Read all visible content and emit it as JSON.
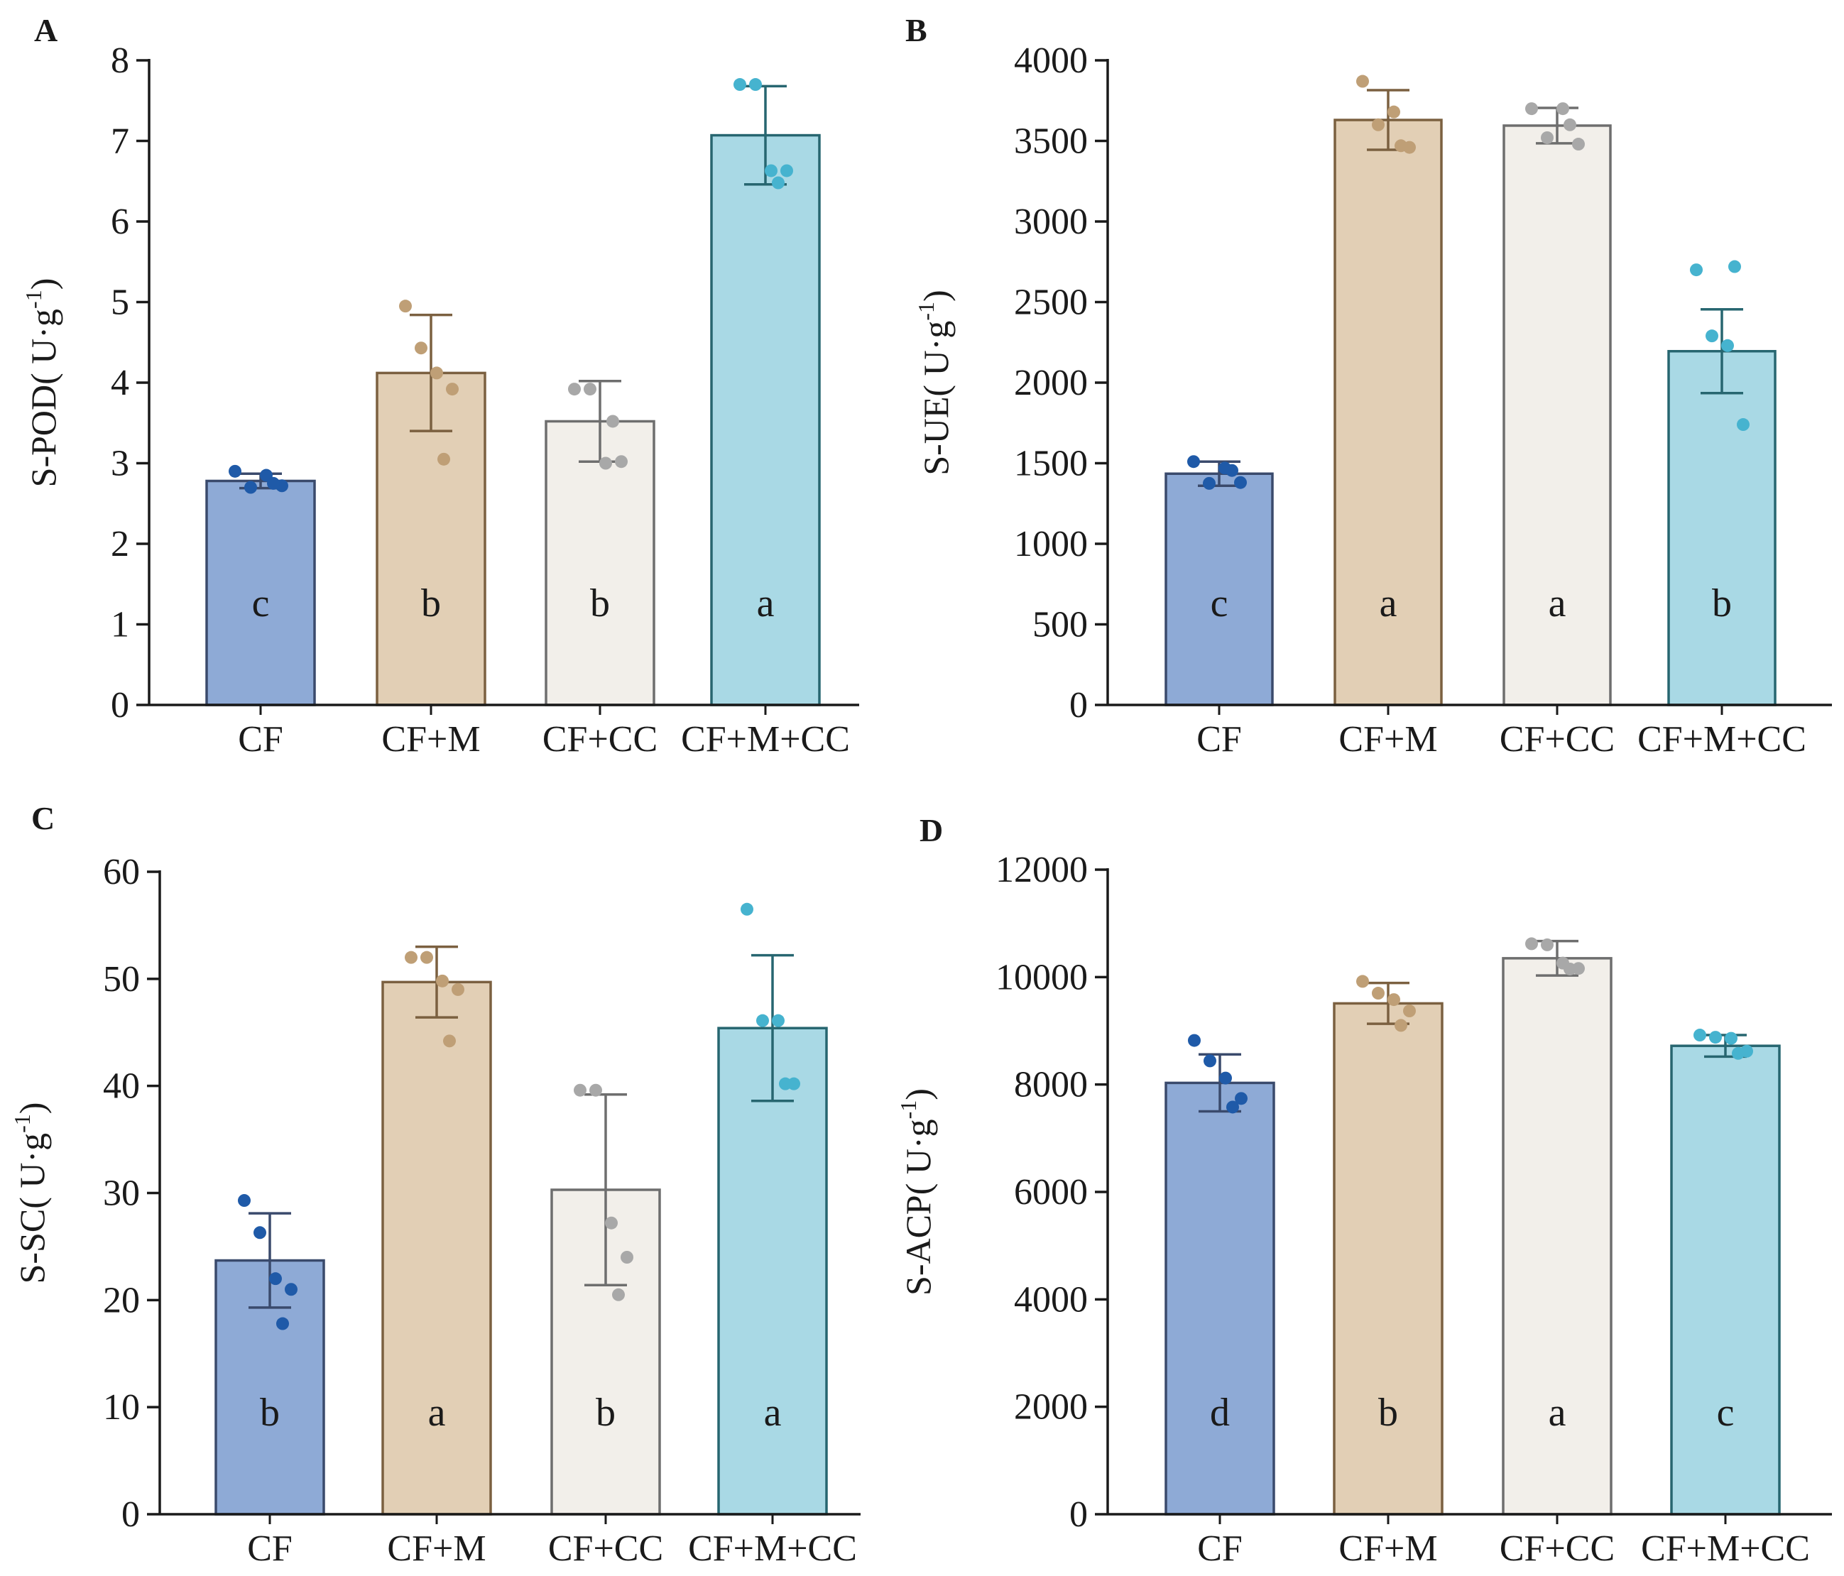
{
  "figure": {
    "panels": [
      "A",
      "B",
      "C",
      "D"
    ]
  },
  "chart_data": [
    {
      "panel": "A",
      "type": "bar",
      "categories": [
        "CF",
        "CF+M",
        "CF+CC",
        "CF+M+CC"
      ],
      "values": [
        2.78,
        4.12,
        3.52,
        7.07
      ],
      "sd": [
        0.09,
        0.72,
        0.5,
        0.61
      ],
      "points": [
        [
          2.9,
          2.7,
          2.85,
          2.72,
          2.75
        ],
        [
          4.95,
          4.43,
          4.12,
          3.92,
          3.05
        ],
        [
          3.92,
          3.92,
          3.0,
          3.02,
          3.52
        ],
        [
          7.7,
          7.7,
          6.63,
          6.63,
          6.48
        ]
      ],
      "letters": [
        "c",
        "b",
        "b",
        "a"
      ],
      "ylabel_main": "S-POD",
      "ylabel_unit": "U·g",
      "ylabel_exp": "-1",
      "ylim": [
        0,
        8
      ],
      "yticks": [
        "0",
        "1",
        "2",
        "3",
        "4",
        "5",
        "6",
        "7",
        "8"
      ],
      "colors": {
        "fill": [
          "#8eaad6",
          "#e2cfb5",
          "#f2efea",
          "#a9d9e5"
        ],
        "stroke": [
          "#3a4a6c",
          "#7b6040",
          "#6e6e6e",
          "#276670"
        ],
        "dot": [
          "#1f5aa8",
          "#bf9f76",
          "#a8a8a8",
          "#46b3cf"
        ]
      }
    },
    {
      "panel": "B",
      "type": "bar",
      "categories": [
        "CF",
        "CF+M",
        "CF+CC",
        "CF+M+CC"
      ],
      "values": [
        1435,
        3630,
        3595,
        2195
      ],
      "sd": [
        75,
        185,
        110,
        260
      ],
      "points": [
        [
          1510,
          1375,
          1470,
          1380,
          1455
        ],
        [
          3870,
          3600,
          3680,
          3460,
          3470
        ],
        [
          3700,
          3520,
          3700,
          3480,
          3600
        ],
        [
          2700,
          2290,
          2230,
          1740,
          2720
        ]
      ],
      "letters": [
        "c",
        "a",
        "a",
        "b"
      ],
      "ylabel_main": "S-UE",
      "ylabel_unit": "U·g",
      "ylabel_exp": "-1",
      "ylim": [
        0,
        4000
      ],
      "yticks": [
        "0",
        "500",
        "1000",
        "1500",
        "2000",
        "2500",
        "3000",
        "3500",
        "4000"
      ],
      "colors": {
        "fill": [
          "#8eaad6",
          "#e2cfb5",
          "#f2efea",
          "#a9d9e5"
        ],
        "stroke": [
          "#3a4a6c",
          "#7b6040",
          "#6e6e6e",
          "#276670"
        ],
        "dot": [
          "#1f5aa8",
          "#bf9f76",
          "#a8a8a8",
          "#46b3cf"
        ]
      }
    },
    {
      "panel": "C",
      "type": "bar",
      "categories": [
        "CF",
        "CF+M",
        "CF+CC",
        "CF+M+CC"
      ],
      "values": [
        23.7,
        49.7,
        30.3,
        45.4
      ],
      "sd": [
        4.4,
        3.3,
        8.9,
        6.8
      ],
      "points": [
        [
          29.3,
          26.3,
          22.0,
          21.0,
          17.8
        ],
        [
          52.0,
          52.0,
          49.8,
          49.0,
          44.2
        ],
        [
          39.6,
          39.6,
          27.2,
          24.0,
          20.5
        ],
        [
          56.5,
          46.1,
          46.1,
          40.2,
          40.2
        ]
      ],
      "letters": [
        "b",
        "a",
        "b",
        "a"
      ],
      "ylabel_main": "S-SC",
      "ylabel_unit": "U·g",
      "ylabel_exp": "-1",
      "ylim": [
        0,
        60
      ],
      "yticks": [
        "0",
        "10",
        "20",
        "30",
        "40",
        "50",
        "60"
      ],
      "colors": {
        "fill": [
          "#8eaad6",
          "#e2cfb5",
          "#f2efea",
          "#a9d9e5"
        ],
        "stroke": [
          "#3a4a6c",
          "#7b6040",
          "#6e6e6e",
          "#276670"
        ],
        "dot": [
          "#1f5aa8",
          "#bf9f76",
          "#a8a8a8",
          "#46b3cf"
        ]
      }
    },
    {
      "panel": "D",
      "type": "bar",
      "categories": [
        "CF",
        "CF+M",
        "CF+CC",
        "CF+M+CC"
      ],
      "values": [
        8030,
        9510,
        10350,
        8720
      ],
      "sd": [
        530,
        380,
        320,
        200
      ],
      "points": [
        [
          8820,
          8440,
          8120,
          7740,
          7580
        ],
        [
          9920,
          9700,
          9580,
          9370,
          9100
        ],
        [
          10620,
          10600,
          10260,
          10160,
          10150
        ],
        [
          8920,
          8880,
          8860,
          8620,
          8580
        ]
      ],
      "letters": [
        "d",
        "b",
        "a",
        "c"
      ],
      "ylabel_main": "S-ACP",
      "ylabel_unit": "U·g",
      "ylabel_exp": "-1",
      "ylim": [
        0,
        12000
      ],
      "yticks": [
        "0",
        "2000",
        "4000",
        "6000",
        "8000",
        "10000",
        "12000"
      ],
      "colors": {
        "fill": [
          "#8eaad6",
          "#e2cfb5",
          "#f2efea",
          "#a9d9e5"
        ],
        "stroke": [
          "#3a4a6c",
          "#7b6040",
          "#6e6e6e",
          "#276670"
        ],
        "dot": [
          "#1f5aa8",
          "#bf9f76",
          "#a8a8a8",
          "#46b3cf"
        ]
      }
    }
  ]
}
